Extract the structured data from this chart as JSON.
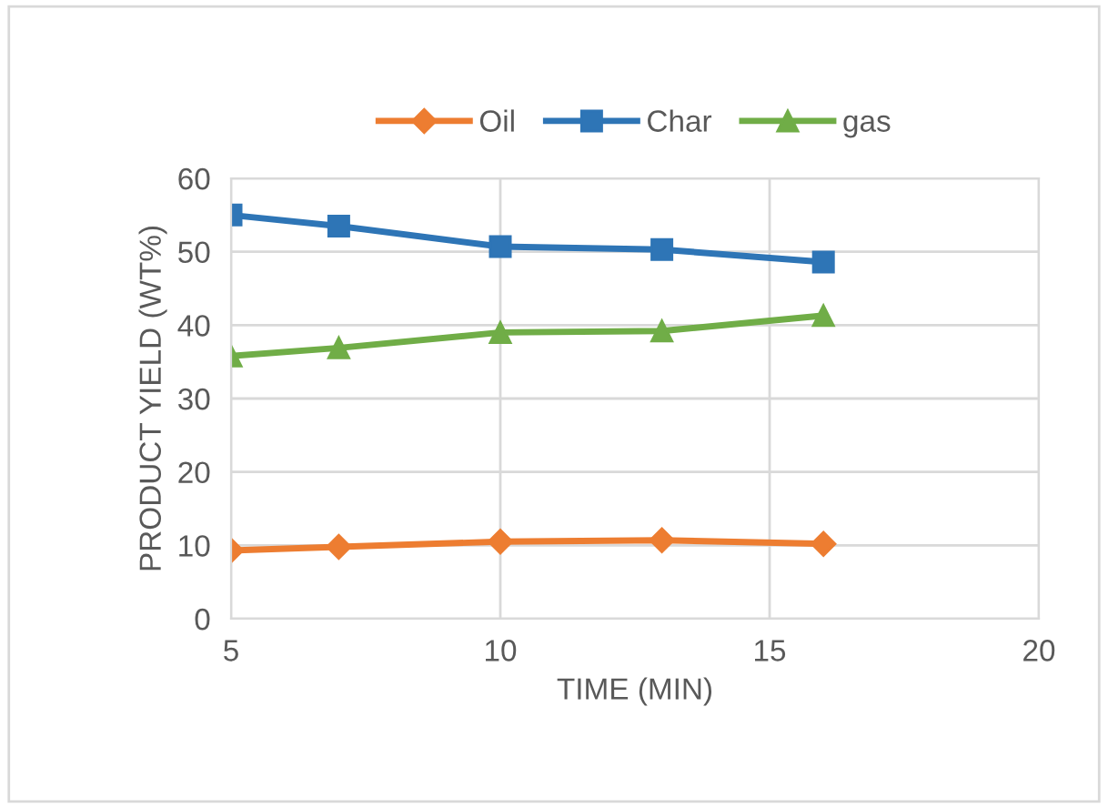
{
  "chart_data": {
    "type": "line",
    "xlabel": "TIME (MIN)",
    "ylabel": "PRODUCT YIELD (WT%)",
    "x": [
      5,
      7,
      10,
      13,
      16
    ],
    "series": [
      {
        "name": "Oil",
        "color": "#ed7d31",
        "marker": "diamond",
        "values": [
          9.3,
          9.8,
          10.5,
          10.7,
          10.2
        ]
      },
      {
        "name": "Char",
        "color": "#2e75b6",
        "marker": "square",
        "values": [
          55.0,
          53.5,
          50.7,
          50.3,
          48.6
        ]
      },
      {
        "name": "gas",
        "color": "#70ad47",
        "marker": "triangle",
        "values": [
          35.8,
          36.9,
          39.0,
          39.2,
          41.3
        ]
      }
    ],
    "xlim": [
      5,
      20
    ],
    "xticks": [
      5,
      10,
      15,
      20
    ],
    "ylim": [
      0,
      60
    ],
    "yticks": [
      0,
      10,
      20,
      30,
      40,
      50,
      60
    ],
    "grid": true,
    "legend": "top",
    "line_style": "solid"
  }
}
